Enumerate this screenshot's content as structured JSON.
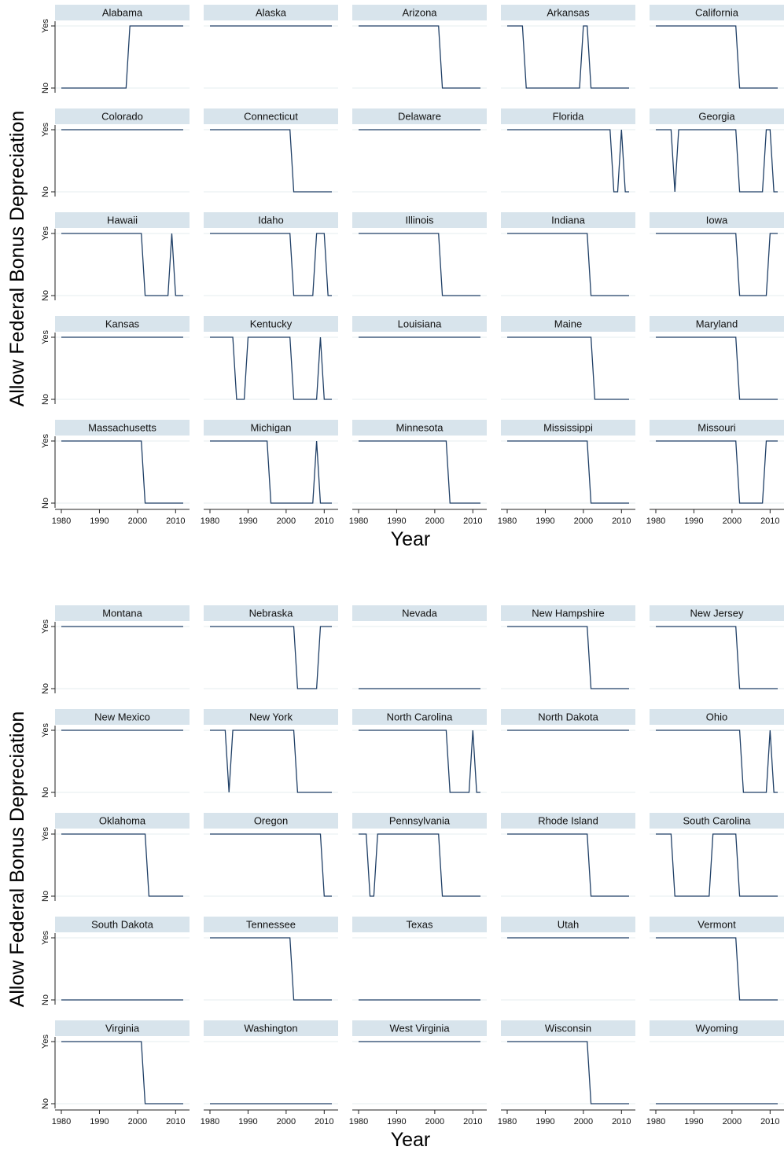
{
  "chart_data": [
    {
      "type": "line",
      "ylabel": "Allow Federal Bonus Depreciation",
      "xlabel": "Year",
      "xlim": [
        1980,
        2012
      ],
      "xticks": [
        "1980",
        "1990",
        "2000",
        "2010"
      ],
      "ylim": [
        0,
        1
      ],
      "yticks": [
        {
          "value": 0,
          "label": "No"
        },
        {
          "value": 1,
          "label": "Yes"
        }
      ],
      "grid": true,
      "panels": [
        {
          "name": "Alabama",
          "x": [
            1980,
            1997,
            1998,
            2012
          ],
          "y": [
            0,
            0,
            1,
            1
          ]
        },
        {
          "name": "Alaska",
          "x": [
            1980,
            2012
          ],
          "y": [
            1,
            1
          ]
        },
        {
          "name": "Arizona",
          "x": [
            1980,
            2001,
            2002,
            2012
          ],
          "y": [
            1,
            1,
            0,
            0
          ]
        },
        {
          "name": "Arkansas",
          "x": [
            1980,
            1984,
            1985,
            1999,
            2000,
            2001,
            2002,
            2012
          ],
          "y": [
            1,
            1,
            0,
            0,
            1,
            1,
            0,
            0
          ]
        },
        {
          "name": "California",
          "x": [
            1980,
            2001,
            2002,
            2012
          ],
          "y": [
            1,
            1,
            0,
            0
          ]
        },
        {
          "name": "Colorado",
          "x": [
            1980,
            2012
          ],
          "y": [
            1,
            1
          ]
        },
        {
          "name": "Connecticut",
          "x": [
            1980,
            2001,
            2002,
            2012
          ],
          "y": [
            1,
            1,
            0,
            0
          ]
        },
        {
          "name": "Delaware",
          "x": [
            1980,
            2012
          ],
          "y": [
            1,
            1
          ]
        },
        {
          "name": "Florida",
          "x": [
            1980,
            2007,
            2008,
            2009,
            2010,
            2011,
            2012
          ],
          "y": [
            1,
            1,
            0,
            0,
            1,
            0,
            0
          ]
        },
        {
          "name": "Georgia",
          "x": [
            1980,
            1984,
            1985,
            1986,
            2001,
            2002,
            2008,
            2009,
            2010,
            2011,
            2012
          ],
          "y": [
            1,
            1,
            0,
            1,
            1,
            0,
            0,
            1,
            1,
            0,
            0
          ]
        },
        {
          "name": "Hawaii",
          "x": [
            1980,
            2001,
            2002,
            2008,
            2009,
            2010,
            2012
          ],
          "y": [
            1,
            1,
            0,
            0,
            1,
            0,
            0
          ]
        },
        {
          "name": "Idaho",
          "x": [
            1980,
            2001,
            2002,
            2007,
            2008,
            2010,
            2011,
            2012
          ],
          "y": [
            1,
            1,
            0,
            0,
            1,
            1,
            0,
            0
          ]
        },
        {
          "name": "Illinois",
          "x": [
            1980,
            2001,
            2002,
            2012
          ],
          "y": [
            1,
            1,
            0,
            0
          ]
        },
        {
          "name": "Indiana",
          "x": [
            1980,
            2001,
            2002,
            2012
          ],
          "y": [
            1,
            1,
            0,
            0
          ]
        },
        {
          "name": "Iowa",
          "x": [
            1980,
            2001,
            2002,
            2009,
            2010,
            2012
          ],
          "y": [
            1,
            1,
            0,
            0,
            1,
            1
          ]
        },
        {
          "name": "Kansas",
          "x": [
            1980,
            2012
          ],
          "y": [
            1,
            1
          ]
        },
        {
          "name": "Kentucky",
          "x": [
            1980,
            1986,
            1987,
            1989,
            1990,
            2001,
            2002,
            2008,
            2009,
            2010,
            2012
          ],
          "y": [
            1,
            1,
            0,
            0,
            1,
            1,
            0,
            0,
            1,
            0,
            0
          ]
        },
        {
          "name": "Louisiana",
          "x": [
            1980,
            2012
          ],
          "y": [
            1,
            1
          ]
        },
        {
          "name": "Maine",
          "x": [
            1980,
            2002,
            2003,
            2012
          ],
          "y": [
            1,
            1,
            0,
            0
          ]
        },
        {
          "name": "Maryland",
          "x": [
            1980,
            2001,
            2002,
            2012
          ],
          "y": [
            1,
            1,
            0,
            0
          ]
        },
        {
          "name": "Massachusetts",
          "x": [
            1980,
            2001,
            2002,
            2012
          ],
          "y": [
            1,
            1,
            0,
            0
          ]
        },
        {
          "name": "Michigan",
          "x": [
            1980,
            1995,
            1996,
            2007,
            2008,
            2009,
            2012
          ],
          "y": [
            1,
            1,
            0,
            0,
            1,
            0,
            0
          ]
        },
        {
          "name": "Minnesota",
          "x": [
            1980,
            2003,
            2004,
            2012
          ],
          "y": [
            1,
            1,
            0,
            0
          ]
        },
        {
          "name": "Mississippi",
          "x": [
            1980,
            2001,
            2002,
            2012
          ],
          "y": [
            1,
            1,
            0,
            0
          ]
        },
        {
          "name": "Missouri",
          "x": [
            1980,
            2001,
            2002,
            2008,
            2009,
            2012
          ],
          "y": [
            1,
            1,
            0,
            0,
            1,
            1
          ]
        },
        {
          "name": "Montana",
          "x": [
            1980,
            2012
          ],
          "y": [
            1,
            1
          ]
        },
        {
          "name": "Nebraska",
          "x": [
            1980,
            2002,
            2003,
            2008,
            2009,
            2012
          ],
          "y": [
            1,
            1,
            0,
            0,
            1,
            1
          ]
        },
        {
          "name": "Nevada",
          "x": [
            1980,
            2012
          ],
          "y": [
            0,
            0
          ]
        },
        {
          "name": "New Hampshire",
          "x": [
            1980,
            2001,
            2002,
            2012
          ],
          "y": [
            1,
            1,
            0,
            0
          ]
        },
        {
          "name": "New Jersey",
          "x": [
            1980,
            2001,
            2002,
            2012
          ],
          "y": [
            1,
            1,
            0,
            0
          ]
        },
        {
          "name": "New Mexico",
          "x": [
            1980,
            2012
          ],
          "y": [
            1,
            1
          ]
        },
        {
          "name": "New York",
          "x": [
            1980,
            1984,
            1985,
            1986,
            2002,
            2003,
            2012
          ],
          "y": [
            1,
            1,
            0,
            1,
            1,
            0,
            0
          ]
        },
        {
          "name": "North Carolina",
          "x": [
            1980,
            2003,
            2004,
            2009,
            2010,
            2011,
            2012
          ],
          "y": [
            1,
            1,
            0,
            0,
            1,
            0,
            0
          ]
        },
        {
          "name": "North Dakota",
          "x": [
            1980,
            2012
          ],
          "y": [
            1,
            1
          ]
        },
        {
          "name": "Ohio",
          "x": [
            1980,
            2002,
            2003,
            2009,
            2010,
            2011,
            2012
          ],
          "y": [
            1,
            1,
            0,
            0,
            1,
            0,
            0
          ]
        },
        {
          "name": "Oklahoma",
          "x": [
            1980,
            2002,
            2003,
            2012
          ],
          "y": [
            1,
            1,
            0,
            0
          ]
        },
        {
          "name": "Oregon",
          "x": [
            1980,
            2009,
            2010,
            2012
          ],
          "y": [
            1,
            1,
            0,
            0
          ]
        },
        {
          "name": "Pennsylvania",
          "x": [
            1980,
            1982,
            1983,
            1984,
            1985,
            2001,
            2002,
            2012
          ],
          "y": [
            1,
            1,
            0,
            0,
            1,
            1,
            0,
            0
          ]
        },
        {
          "name": "Rhode Island",
          "x": [
            1980,
            2001,
            2002,
            2012
          ],
          "y": [
            1,
            1,
            0,
            0
          ]
        },
        {
          "name": "South Carolina",
          "x": [
            1980,
            1984,
            1985,
            1994,
            1995,
            2001,
            2002,
            2012
          ],
          "y": [
            1,
            1,
            0,
            0,
            1,
            1,
            0,
            0
          ]
        },
        {
          "name": "South Dakota",
          "x": [
            1980,
            2012
          ],
          "y": [
            0,
            0
          ]
        },
        {
          "name": "Tennessee",
          "x": [
            1980,
            2001,
            2002,
            2012
          ],
          "y": [
            1,
            1,
            0,
            0
          ]
        },
        {
          "name": "Texas",
          "x": [
            1980,
            2012
          ],
          "y": [
            0,
            0
          ]
        },
        {
          "name": "Utah",
          "x": [
            1980,
            2012
          ],
          "y": [
            1,
            1
          ]
        },
        {
          "name": "Vermont",
          "x": [
            1980,
            2001,
            2002,
            2012
          ],
          "y": [
            1,
            1,
            0,
            0
          ]
        },
        {
          "name": "Virginia",
          "x": [
            1980,
            2001,
            2002,
            2012
          ],
          "y": [
            1,
            1,
            0,
            0
          ]
        },
        {
          "name": "Washington",
          "x": [
            1980,
            2012
          ],
          "y": [
            0,
            0
          ]
        },
        {
          "name": "West Virginia",
          "x": [
            1980,
            2012
          ],
          "y": [
            1,
            1
          ]
        },
        {
          "name": "Wisconsin",
          "x": [
            1980,
            2001,
            2002,
            2012
          ],
          "y": [
            1,
            1,
            0,
            0
          ]
        },
        {
          "name": "Wyoming",
          "x": [
            1980,
            2012
          ],
          "y": [
            0,
            0
          ]
        }
      ]
    }
  ],
  "colors": {
    "line": "#1f3f66",
    "strip": "#d8e4ec",
    "grid": "#e6ecef",
    "axis": "#222222"
  }
}
